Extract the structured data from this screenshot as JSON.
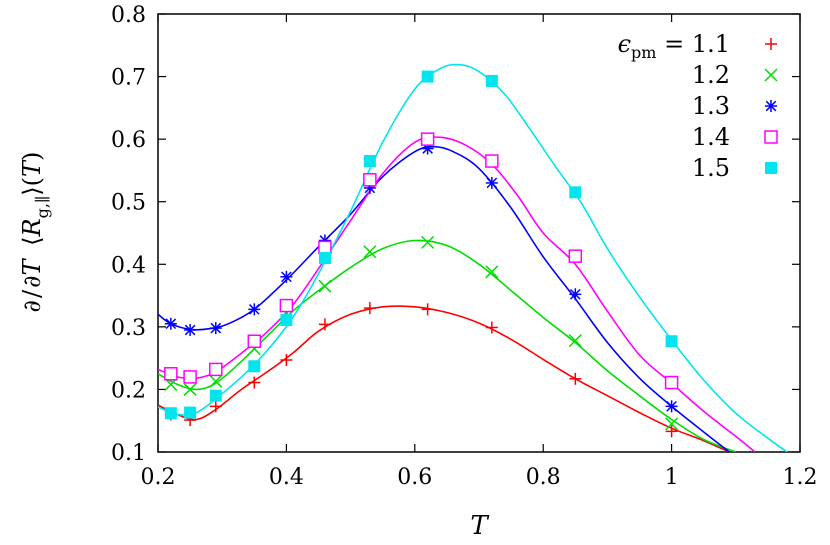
{
  "chart_data": {
    "type": "line",
    "xlabel": "T",
    "ylabel": "∂/∂T ⟨R_{g,∥}⟩(T)",
    "xlim": [
      0.2,
      1.2
    ],
    "ylim": [
      0.1,
      0.8
    ],
    "xticks": [
      "0.2",
      "0.4",
      "0.6",
      "0.8",
      "1",
      "1.2"
    ],
    "yticks": [
      "0.1",
      "0.2",
      "0.3",
      "0.4",
      "0.5",
      "0.6",
      "0.7",
      "0.8"
    ],
    "grid": false,
    "legend_position": "top-right",
    "legend_prefix": "ϵ",
    "legend_prefix_sub": "pm",
    "legend_eq": " = ",
    "series": [
      {
        "name": "1.1",
        "color": "#ff0000",
        "marker": "plus",
        "points": [
          [
            0.22,
            0.16
          ],
          [
            0.25,
            0.151
          ],
          [
            0.29,
            0.173
          ],
          [
            0.35,
            0.211
          ],
          [
            0.4,
            0.247
          ],
          [
            0.46,
            0.304
          ],
          [
            0.53,
            0.33
          ],
          [
            0.62,
            0.328
          ],
          [
            0.72,
            0.299
          ],
          [
            0.85,
            0.217
          ],
          [
            1.0,
            0.133
          ]
        ],
        "curve": [
          [
            0.2,
            0.175
          ],
          [
            0.23,
            0.16
          ],
          [
            0.26,
            0.152
          ],
          [
            0.29,
            0.168
          ],
          [
            0.33,
            0.2
          ],
          [
            0.37,
            0.228
          ],
          [
            0.41,
            0.258
          ],
          [
            0.45,
            0.293
          ],
          [
            0.5,
            0.32
          ],
          [
            0.55,
            0.332
          ],
          [
            0.6,
            0.332
          ],
          [
            0.65,
            0.323
          ],
          [
            0.7,
            0.306
          ],
          [
            0.75,
            0.28
          ],
          [
            0.8,
            0.248
          ],
          [
            0.85,
            0.217
          ],
          [
            0.9,
            0.19
          ],
          [
            0.95,
            0.163
          ],
          [
            1.0,
            0.138
          ],
          [
            1.05,
            0.118
          ],
          [
            1.09,
            0.1
          ]
        ]
      },
      {
        "name": "1.2",
        "color": "#00dd00",
        "marker": "cross",
        "points": [
          [
            0.22,
            0.208
          ],
          [
            0.25,
            0.2
          ],
          [
            0.29,
            0.213
          ],
          [
            0.35,
            0.265
          ],
          [
            0.4,
            0.322
          ],
          [
            0.46,
            0.365
          ],
          [
            0.53,
            0.42
          ],
          [
            0.62,
            0.435
          ],
          [
            0.72,
            0.388
          ],
          [
            0.85,
            0.278
          ],
          [
            1.0,
            0.145
          ]
        ],
        "curve": [
          [
            0.2,
            0.225
          ],
          [
            0.23,
            0.208
          ],
          [
            0.26,
            0.2
          ],
          [
            0.29,
            0.21
          ],
          [
            0.33,
            0.245
          ],
          [
            0.37,
            0.285
          ],
          [
            0.41,
            0.325
          ],
          [
            0.45,
            0.358
          ],
          [
            0.5,
            0.395
          ],
          [
            0.55,
            0.425
          ],
          [
            0.6,
            0.438
          ],
          [
            0.65,
            0.43
          ],
          [
            0.7,
            0.4
          ],
          [
            0.75,
            0.358
          ],
          [
            0.8,
            0.315
          ],
          [
            0.85,
            0.275
          ],
          [
            0.9,
            0.23
          ],
          [
            0.95,
            0.19
          ],
          [
            1.0,
            0.152
          ],
          [
            1.05,
            0.12
          ],
          [
            1.1,
            0.1
          ]
        ]
      },
      {
        "name": "1.3",
        "color": "#0000ff",
        "marker": "star",
        "points": [
          [
            0.22,
            0.305
          ],
          [
            0.25,
            0.295
          ],
          [
            0.29,
            0.298
          ],
          [
            0.35,
            0.328
          ],
          [
            0.4,
            0.38
          ],
          [
            0.46,
            0.438
          ],
          [
            0.53,
            0.522
          ],
          [
            0.62,
            0.585
          ],
          [
            0.72,
            0.53
          ],
          [
            0.85,
            0.352
          ],
          [
            1.0,
            0.173
          ]
        ],
        "curve": [
          [
            0.2,
            0.32
          ],
          [
            0.22,
            0.305
          ],
          [
            0.25,
            0.296
          ],
          [
            0.28,
            0.297
          ],
          [
            0.31,
            0.305
          ],
          [
            0.35,
            0.328
          ],
          [
            0.4,
            0.375
          ],
          [
            0.45,
            0.428
          ],
          [
            0.5,
            0.48
          ],
          [
            0.55,
            0.54
          ],
          [
            0.6,
            0.58
          ],
          [
            0.63,
            0.588
          ],
          [
            0.66,
            0.58
          ],
          [
            0.7,
            0.553
          ],
          [
            0.75,
            0.49
          ],
          [
            0.8,
            0.412
          ],
          [
            0.85,
            0.345
          ],
          [
            0.9,
            0.275
          ],
          [
            0.95,
            0.218
          ],
          [
            1.0,
            0.173
          ],
          [
            1.05,
            0.132
          ],
          [
            1.09,
            0.1
          ]
        ]
      },
      {
        "name": "1.4",
        "color": "#ff00ff",
        "marker": "open-square",
        "points": [
          [
            0.22,
            0.225
          ],
          [
            0.25,
            0.22
          ],
          [
            0.29,
            0.232
          ],
          [
            0.35,
            0.277
          ],
          [
            0.4,
            0.334
          ],
          [
            0.46,
            0.427
          ],
          [
            0.53,
            0.535
          ],
          [
            0.62,
            0.6
          ],
          [
            0.72,
            0.565
          ],
          [
            0.85,
            0.413
          ],
          [
            1.0,
            0.211
          ]
        ],
        "curve": [
          [
            0.2,
            0.232
          ],
          [
            0.23,
            0.22
          ],
          [
            0.26,
            0.218
          ],
          [
            0.29,
            0.228
          ],
          [
            0.33,
            0.258
          ],
          [
            0.37,
            0.292
          ],
          [
            0.41,
            0.335
          ],
          [
            0.45,
            0.393
          ],
          [
            0.5,
            0.47
          ],
          [
            0.55,
            0.545
          ],
          [
            0.6,
            0.595
          ],
          [
            0.64,
            0.603
          ],
          [
            0.68,
            0.59
          ],
          [
            0.72,
            0.56
          ],
          [
            0.76,
            0.51
          ],
          [
            0.8,
            0.45
          ],
          [
            0.85,
            0.4
          ],
          [
            0.9,
            0.325
          ],
          [
            0.95,
            0.255
          ],
          [
            1.0,
            0.21
          ],
          [
            1.05,
            0.165
          ],
          [
            1.1,
            0.125
          ],
          [
            1.13,
            0.1
          ]
        ]
      },
      {
        "name": "1.5",
        "color": "#00e5ee",
        "marker": "filled-square",
        "points": [
          [
            0.22,
            0.162
          ],
          [
            0.25,
            0.163
          ],
          [
            0.29,
            0.19
          ],
          [
            0.35,
            0.237
          ],
          [
            0.4,
            0.311
          ],
          [
            0.46,
            0.41
          ],
          [
            0.53,
            0.565
          ],
          [
            0.62,
            0.7
          ],
          [
            0.72,
            0.693
          ],
          [
            0.85,
            0.515
          ],
          [
            1.0,
            0.277
          ]
        ],
        "curve": [
          [
            0.2,
            0.172
          ],
          [
            0.23,
            0.16
          ],
          [
            0.26,
            0.163
          ],
          [
            0.29,
            0.185
          ],
          [
            0.33,
            0.22
          ],
          [
            0.37,
            0.262
          ],
          [
            0.41,
            0.315
          ],
          [
            0.45,
            0.385
          ],
          [
            0.5,
            0.485
          ],
          [
            0.55,
            0.595
          ],
          [
            0.6,
            0.68
          ],
          [
            0.64,
            0.713
          ],
          [
            0.67,
            0.719
          ],
          [
            0.7,
            0.708
          ],
          [
            0.74,
            0.672
          ],
          [
            0.78,
            0.615
          ],
          [
            0.82,
            0.555
          ],
          [
            0.86,
            0.497
          ],
          [
            0.9,
            0.425
          ],
          [
            0.95,
            0.348
          ],
          [
            1.0,
            0.279
          ],
          [
            1.05,
            0.215
          ],
          [
            1.1,
            0.162
          ],
          [
            1.15,
            0.122
          ],
          [
            1.18,
            0.1
          ]
        ]
      }
    ]
  }
}
